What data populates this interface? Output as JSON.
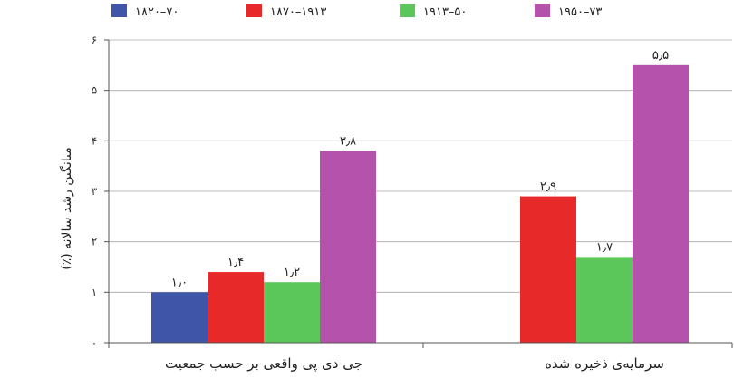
{
  "chart_data": {
    "type": "bar",
    "title": "",
    "xlabel": "",
    "ylabel": "میانگین رشد سالانه (٪)",
    "ylim": [
      0,
      6
    ],
    "yticks": [
      {
        "value": 0,
        "label": "۰"
      },
      {
        "value": 1,
        "label": "۱"
      },
      {
        "value": 2,
        "label": "۲"
      },
      {
        "value": 3,
        "label": "۳"
      },
      {
        "value": 4,
        "label": "۴"
      },
      {
        "value": 5,
        "label": "۵"
      },
      {
        "value": 6,
        "label": "۶"
      }
    ],
    "grid": true,
    "legend_position": "top",
    "categories": [
      "جی دی پی واقعی بر حسب جمعیت",
      "سرمایه‌ی ذخیره شده"
    ],
    "series": [
      {
        "name": "۱۸۲۰–۷۰",
        "color": "#3f56a8",
        "values": [
          1.0,
          null
        ],
        "labels": [
          "۱٫۰",
          ""
        ]
      },
      {
        "name": "۱۸۷۰–۱۹۱۳",
        "color": "#e8292a",
        "values": [
          1.4,
          2.9
        ],
        "labels": [
          "۱٫۴",
          "۲٫۹"
        ]
      },
      {
        "name": "۱۹۱۳–۵۰",
        "color": "#5bc65a",
        "values": [
          1.2,
          1.7
        ],
        "labels": [
          "۱٫۲",
          "۱٫۷"
        ]
      },
      {
        "name": "۱۹۵۰–۷۳",
        "color": "#b553ac",
        "values": [
          3.8,
          5.5
        ],
        "labels": [
          "۳٫۸",
          "۵٫۵"
        ]
      }
    ]
  }
}
